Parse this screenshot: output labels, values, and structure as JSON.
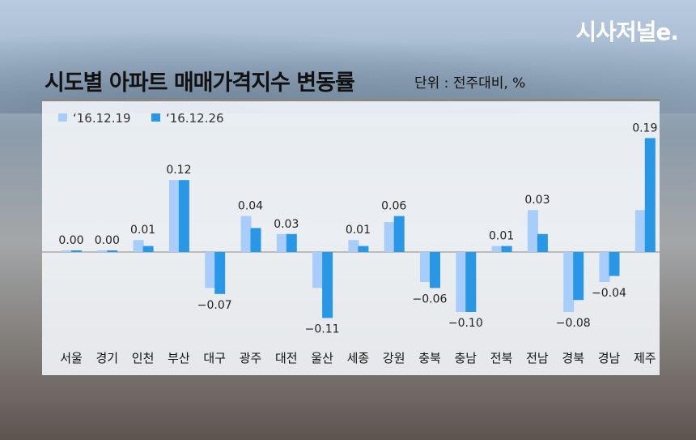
{
  "header": {
    "title": "시도별 아파트 매매가격지수 변동률",
    "unit": "단위 : 전주대비, %",
    "logo": "시사저널e."
  },
  "colors": {
    "prev": "#a8cdfa",
    "curr": "#2898e6"
  },
  "chart_data": {
    "type": "bar",
    "title": "시도별 아파트 매매가격지수 변동률",
    "unit": "단위 : 전주대비, %",
    "categories": [
      "서울",
      "경기",
      "인천",
      "부산",
      "대구",
      "광주",
      "대전",
      "울산",
      "세종",
      "강원",
      "충북",
      "충남",
      "전북",
      "전남",
      "경북",
      "경남",
      "제주"
    ],
    "series": [
      {
        "name": "‘16.12.19",
        "values": [
          0.0,
          0.0,
          0.02,
          0.12,
          -0.06,
          0.06,
          0.03,
          -0.06,
          0.02,
          0.05,
          -0.05,
          -0.1,
          0.01,
          0.07,
          -0.1,
          -0.05,
          0.07
        ]
      },
      {
        "name": "‘16.12.26",
        "values": [
          0.0,
          0.0,
          0.01,
          0.12,
          -0.07,
          0.04,
          0.03,
          -0.11,
          0.01,
          0.06,
          -0.06,
          -0.1,
          0.01,
          0.03,
          -0.08,
          -0.04,
          0.19
        ]
      }
    ],
    "labels": [
      "0.00",
      "0.00",
      "0.01",
      "0.12",
      "−0.07",
      "0.04",
      "0.03",
      "−0.11",
      "0.01",
      "0.06",
      "−0.06",
      "−0.10",
      "0.01",
      "0.03",
      "−0.08",
      "−0.04",
      "0.19"
    ],
    "legend": "top-left",
    "grid": false,
    "ylim": [
      -0.15,
      0.2
    ]
  }
}
